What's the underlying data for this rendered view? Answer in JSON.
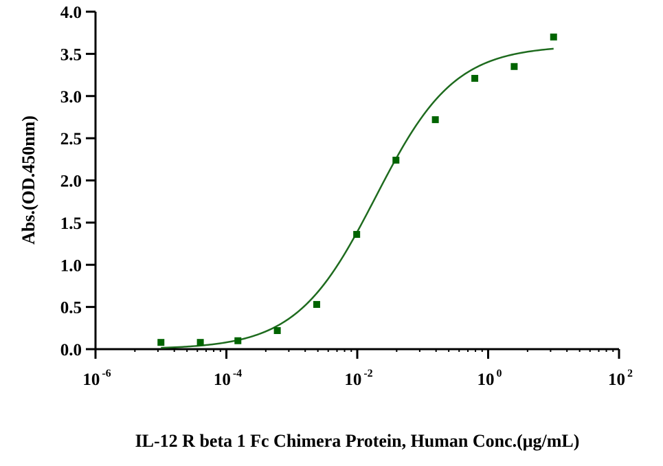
{
  "chart_data": {
    "type": "scatter",
    "xlabel": "IL-12 R beta 1 Fc Chimera Protein, Human Conc.(μg/mL)",
    "ylabel": "Abs.(OD.450nm)",
    "x_scale": "log",
    "xlim": [
      1e-06,
      100
    ],
    "ylim": [
      0,
      4
    ],
    "x_ticks": [
      {
        "base": "10",
        "exp": "-6"
      },
      {
        "base": "10",
        "exp": "-4"
      },
      {
        "base": "10",
        "exp": "-2"
      },
      {
        "base": "10",
        "exp": "0"
      },
      {
        "base": "10",
        "exp": "2"
      }
    ],
    "y_ticks": [
      "0.0",
      "0.5",
      "1.0",
      "1.5",
      "2.0",
      "2.5",
      "3.0",
      "3.5",
      "4.0"
    ],
    "grid": false,
    "legend": "none",
    "marker_color": "#006400",
    "curve_color": "#1e6b1e",
    "points": [
      {
        "x": 1e-05,
        "y": 0.08
      },
      {
        "x": 4e-05,
        "y": 0.08
      },
      {
        "x": 0.00015,
        "y": 0.1
      },
      {
        "x": 0.0006,
        "y": 0.22
      },
      {
        "x": 0.0024,
        "y": 0.53
      },
      {
        "x": 0.0098,
        "y": 1.36
      },
      {
        "x": 0.039,
        "y": 2.24
      },
      {
        "x": 0.156,
        "y": 2.72
      },
      {
        "x": 0.625,
        "y": 3.21
      },
      {
        "x": 2.5,
        "y": 3.35
      },
      {
        "x": 10,
        "y": 3.7
      }
    ],
    "fit_curve": {
      "model": "4PL",
      "bottom": 0.0,
      "top": 3.6,
      "ec50": 0.019,
      "hill": 0.72,
      "x_range": [
        1e-05,
        10
      ]
    }
  }
}
